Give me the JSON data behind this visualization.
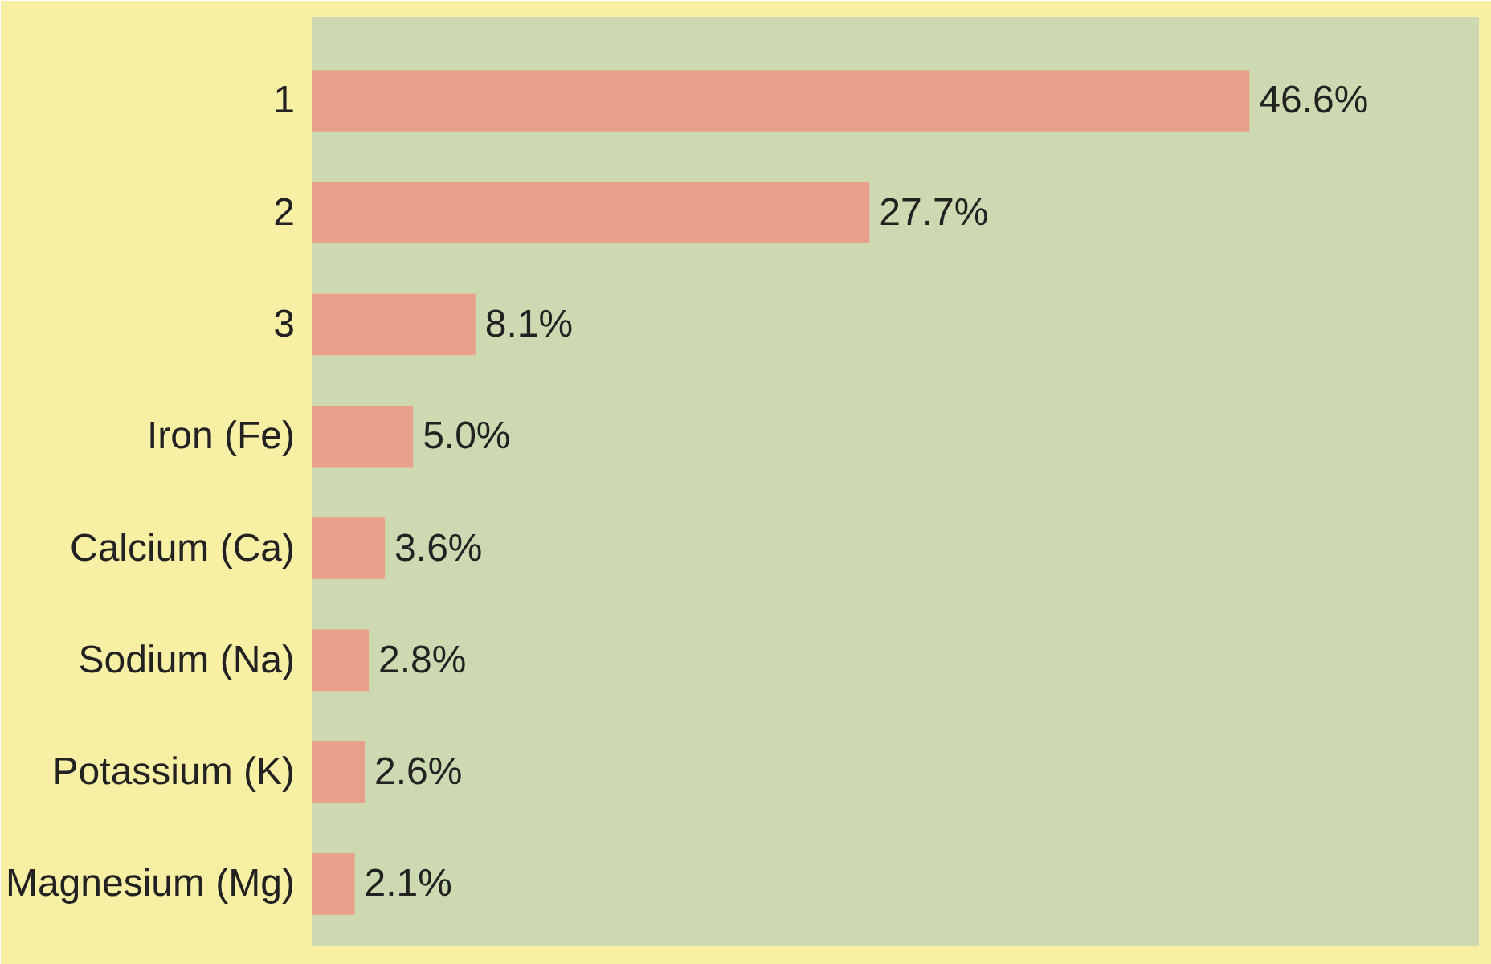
{
  "chart_data": {
    "type": "bar",
    "orientation": "horizontal",
    "categories": [
      "1",
      "2",
      "3",
      "Iron (Fe)",
      "Calcium (Ca)",
      "Sodium (Na)",
      "Potassium (K)",
      "Magnesium (Mg)"
    ],
    "values": [
      46.6,
      27.7,
      8.1,
      5.0,
      3.6,
      2.8,
      2.6,
      2.1
    ],
    "value_labels": [
      "46.6%",
      "27.7%",
      "8.1%",
      "5.0%",
      "3.6%",
      "2.8%",
      "2.6%",
      "2.1%"
    ],
    "color": "#e9a08a"
  }
}
